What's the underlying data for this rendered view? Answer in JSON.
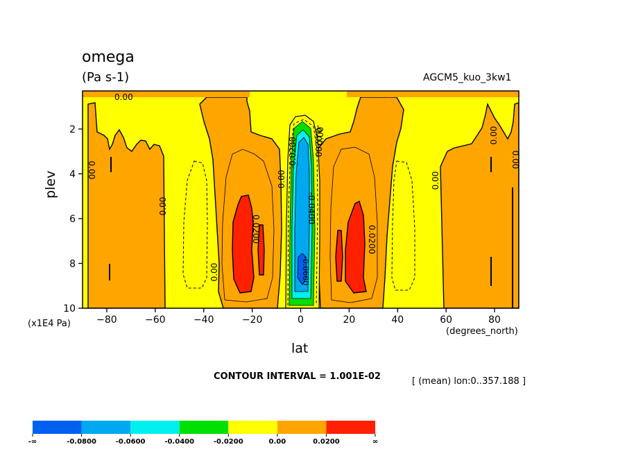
{
  "chart_data": {
    "type": "contour",
    "variable_name": "omega",
    "units": "(Pa s-1)",
    "dataset": "AGCM5_kuo_3kw1",
    "xlabel": "lat",
    "x_units": "(degrees_north)",
    "ylabel": "plev",
    "y_units": "(x1E4 Pa)",
    "x_ticks": [
      -80,
      -60,
      -40,
      -20,
      0,
      20,
      40,
      60,
      80
    ],
    "y_ticks": [
      2,
      4,
      6,
      8,
      10
    ],
    "xlim": [
      -90,
      90
    ],
    "ylim": [
      0.3,
      10
    ],
    "y_inverted": true,
    "contour_interval_text": "CONTOUR INTERVAL = 1.001E-02",
    "mean_text": "[ (mean) lon:0..357.188 ]",
    "contour_labels": [
      "0.00",
      "-0.0200",
      "-0.0400",
      "-0.0600",
      "0.0200"
    ],
    "colorbar": {
      "levels": [
        "-∞",
        "-0.0800",
        "-0.0600",
        "-0.0400",
        "-0.0200",
        "0.00",
        "0.0200",
        "∞"
      ],
      "colors": [
        "#0060f0",
        "#00a8f0",
        "#00f0f0",
        "#00e000",
        "#ffff00",
        "#ffa500",
        "#ff2000"
      ]
    }
  }
}
